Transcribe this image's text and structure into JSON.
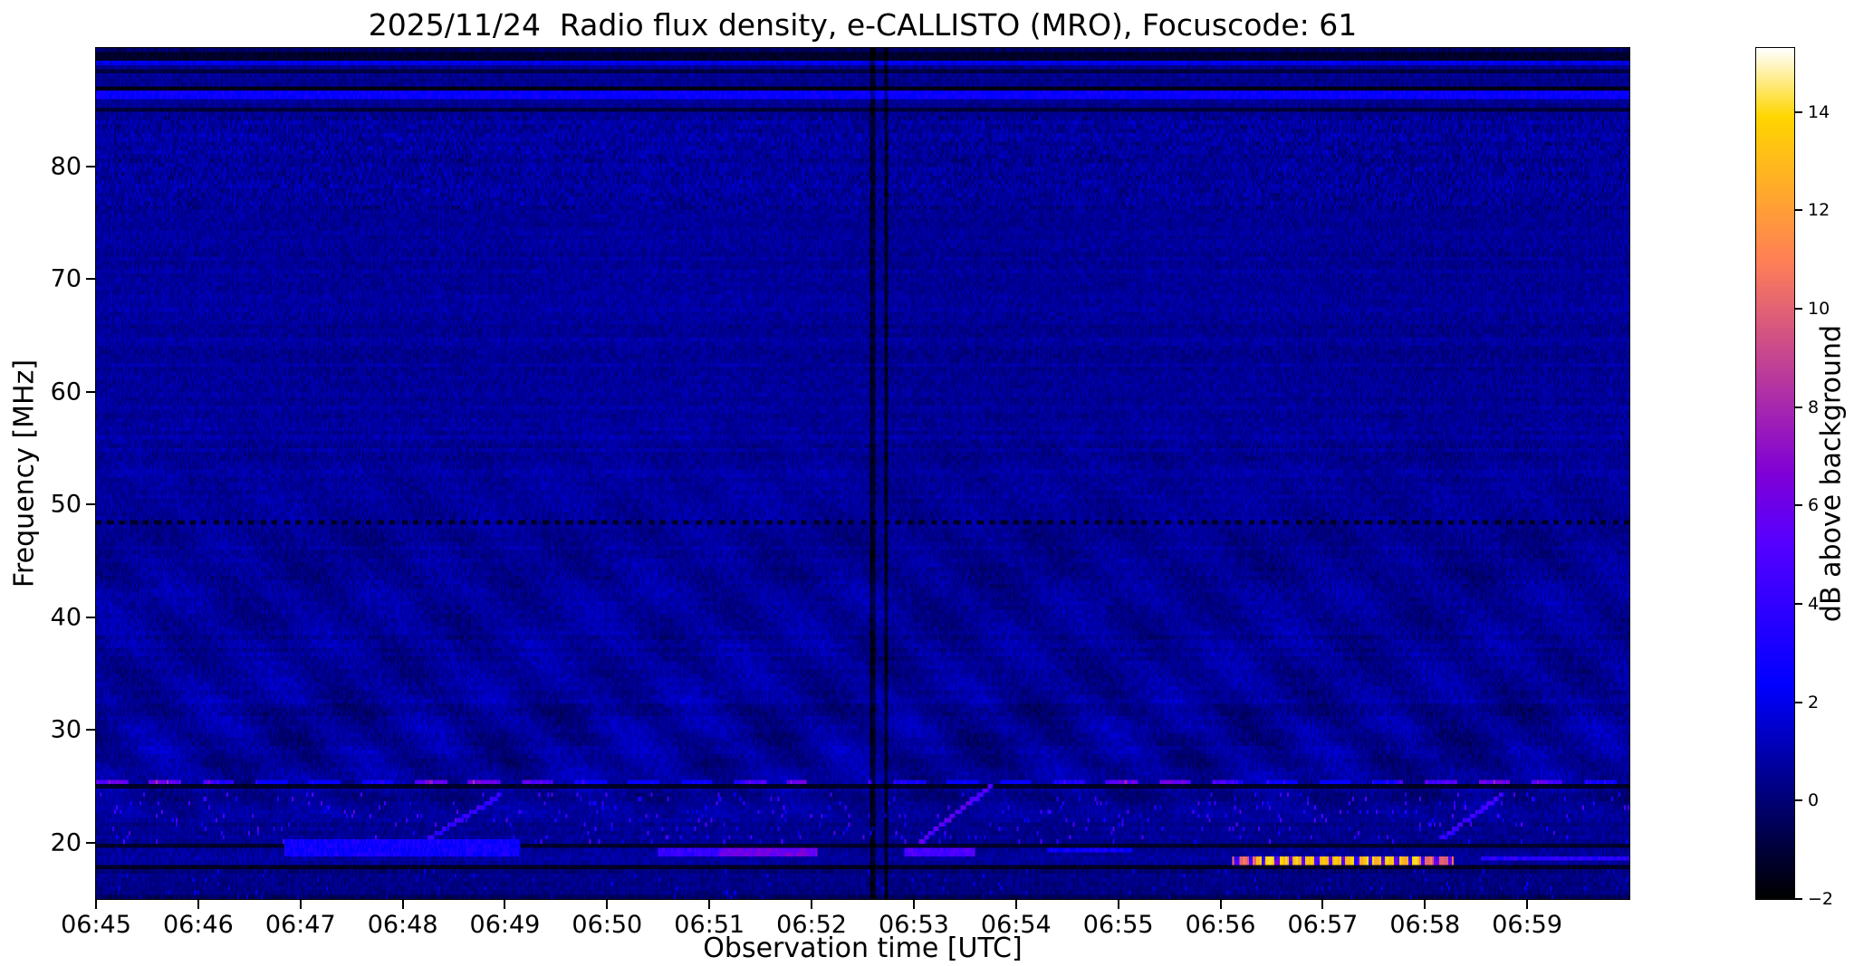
{
  "figure": {
    "background_color": "#ffffff",
    "text_color": "#000000"
  },
  "chart_data": {
    "type": "heatmap",
    "title": "2025/11/24  Radio flux density, e-CALLISTO (MRO), Focuscode: 61",
    "xlabel": "Observation time [UTC]",
    "ylabel": "Frequency [MHz]",
    "x_axis": {
      "start": "06:45",
      "end": "07:00",
      "span_minutes": 15,
      "tick_interval_minutes": 1,
      "tick_labels": [
        "06:45",
        "06:46",
        "06:47",
        "06:48",
        "06:49",
        "06:50",
        "06:51",
        "06:52",
        "06:53",
        "06:54",
        "06:55",
        "06:56",
        "06:57",
        "06:58",
        "06:59"
      ]
    },
    "y_axis": {
      "min_mhz": 15,
      "max_mhz": 90.5,
      "tick_values": [
        20,
        30,
        40,
        50,
        60,
        70,
        80
      ]
    },
    "colorbar": {
      "label": "dB above background",
      "min": -2,
      "max": 15.3,
      "tick_values": [
        14,
        12,
        10,
        8,
        6,
        4,
        2,
        0,
        -2
      ],
      "tick_labels": [
        "14",
        "12",
        "10",
        "8",
        "6",
        "4",
        "2",
        "0",
        "−2"
      ],
      "colormap": "gnuplot2"
    },
    "features": {
      "background": {
        "base_db": 0.55,
        "noise_db": 0.95,
        "row_variation_db": 0.18,
        "col_variation_db": 0.12
      },
      "horizontal_dark_lines": [
        {
          "mhz": 89.7,
          "half_width_mhz": 0.25,
          "db": -1.3
        },
        {
          "mhz": 88.3,
          "half_width_mhz": 0.2,
          "db": -0.9
        },
        {
          "mhz": 86.9,
          "half_width_mhz": 0.28,
          "db": -1.6
        },
        {
          "mhz": 85.2,
          "half_width_mhz": 0.2,
          "db": -1.0
        },
        {
          "mhz": 25.0,
          "half_width_mhz": 0.2,
          "db": -1.3
        },
        {
          "mhz": 19.55,
          "half_width_mhz": 0.2,
          "db": -1.2
        },
        {
          "mhz": 17.75,
          "half_width_mhz": 0.2,
          "db": -1.4
        }
      ],
      "horizontal_bright_lines": [
        {
          "mhz": 89.15,
          "half_width_mhz": 0.2,
          "db": 2.0
        },
        {
          "mhz": 86.35,
          "half_width_mhz": 0.22,
          "db": 2.6
        }
      ],
      "dotted_dark_line": {
        "mhz": 48.45,
        "half_width_mhz": 0.2,
        "db": -1.3,
        "period_min": 0.115,
        "duty": 0.48
      },
      "dashed_rfi_line": {
        "mhz": 25.45,
        "half_width_mhz": 0.22,
        "period_min": 0.52,
        "duty": 0.6,
        "db_min": 2.5,
        "db_max": 8.5,
        "gap_t": [
          6.95,
          7.55
        ]
      },
      "mottled_band": {
        "mhz": [
          76,
          84.5
        ],
        "extra_noise_db": 1.1
      },
      "waves": {
        "mhz": [
          22,
          58
        ],
        "amplitude_db": 0.3,
        "period_min": 0.95
      },
      "speckle_band": {
        "mhz": [
          19.8,
          24.6
        ],
        "density": 0.035,
        "db_min": 2.2,
        "db_max": 5.4
      },
      "bottom_band": {
        "mhz": [
          15,
          17.6
        ],
        "base_db": 0.15
      },
      "segments_19mhz": [
        {
          "t0": 1.85,
          "t1": 4.15,
          "f0": 18.95,
          "f1": 20.3,
          "db": 2.8
        },
        {
          "t0": 5.5,
          "t1": 6.1,
          "f0": 18.9,
          "f1": 19.6,
          "db": 4.0
        },
        {
          "t0": 6.1,
          "t1": 7.05,
          "f0": 18.9,
          "f1": 19.6,
          "db": 6.0
        },
        {
          "t0": 7.9,
          "t1": 8.6,
          "f0": 18.9,
          "f1": 19.6,
          "db": 4.8
        },
        {
          "t0": 9.3,
          "t1": 10.15,
          "f0": 19.0,
          "f1": 19.5,
          "db": 2.6
        },
        {
          "t0": 13.55,
          "t1": 15.0,
          "f0": 18.35,
          "f1": 18.75,
          "db": 3.6
        }
      ],
      "diagonal_streaks": [
        {
          "t0": 3.25,
          "f0": 20.3,
          "t1": 3.95,
          "f1": 24.2,
          "db": 3.2
        },
        {
          "t0": 8.05,
          "f0": 20.0,
          "t1": 8.75,
          "f1": 25.0,
          "db": 4.5
        },
        {
          "t0": 13.15,
          "f0": 20.3,
          "t1": 13.75,
          "f1": 24.2,
          "db": 3.5
        }
      ],
      "strong_burst": {
        "t0": 11.12,
        "t1": 13.28,
        "f0": 17.85,
        "f1": 18.85,
        "glow_db": 5.0,
        "dash_rows_mhz": [
          18.55,
          18.05
        ],
        "dash_period_min": 0.13,
        "dash_duty": 0.72,
        "db_min": 9.5,
        "db_max": 14.2,
        "core_t": [
          11.35,
          12.95
        ]
      },
      "dark_vertical_lines_t_min": [
        7.6,
        7.73
      ]
    }
  }
}
